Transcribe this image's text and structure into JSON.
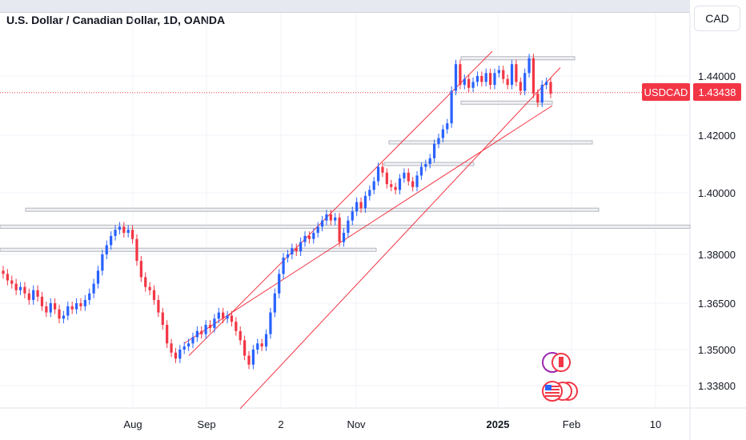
{
  "header": {
    "title": "U.S. Dollar / Canadian Dollar, 1D, OANDA",
    "currency": "CAD"
  },
  "price_label": {
    "symbol": "USDCAD",
    "price": "1.43438"
  },
  "colors": {
    "up": "#2962ff",
    "down": "#f23645",
    "channel": "#f23645",
    "level_line": "#b2b5be"
  },
  "chart_data": {
    "type": "candlestick",
    "title": "U.S. Dollar / Canadian Dollar, 1D, OANDA",
    "symbol": "USDCAD",
    "last_price": 1.43438,
    "y_ticks": [
      1.338,
      1.35,
      1.365,
      1.38,
      1.4,
      1.42,
      1.44
    ],
    "y_tick_labels": [
      "1.33800",
      "1.35000",
      "1.36500",
      "1.38000",
      "1.40000",
      "1.42000",
      "1.44000"
    ],
    "x_ticks": [
      "Aug",
      "Sep",
      "2",
      "Nov",
      "2025",
      "Feb",
      "10"
    ],
    "close_series": [
      1.374,
      1.372,
      1.371,
      1.369,
      1.37,
      1.368,
      1.366,
      1.369,
      1.367,
      1.364,
      1.362,
      1.365,
      1.363,
      1.36,
      1.361,
      1.364,
      1.363,
      1.365,
      1.364,
      1.366,
      1.368,
      1.371,
      1.375,
      1.38,
      1.383,
      1.386,
      1.388,
      1.389,
      1.387,
      1.388,
      1.385,
      1.378,
      1.373,
      1.37,
      1.369,
      1.366,
      1.362,
      1.358,
      1.352,
      1.349,
      1.347,
      1.35,
      1.351,
      1.352,
      1.354,
      1.356,
      1.355,
      1.358,
      1.357,
      1.36,
      1.362,
      1.36,
      1.361,
      1.359,
      1.356,
      1.353,
      1.348,
      1.345,
      1.35,
      1.352,
      1.351,
      1.355,
      1.362,
      1.368,
      1.374,
      1.379,
      1.38,
      1.382,
      1.381,
      1.384,
      1.386,
      1.385,
      1.387,
      1.389,
      1.391,
      1.393,
      1.391,
      1.392,
      1.384,
      1.387,
      1.391,
      1.394,
      1.397,
      1.395,
      1.399,
      1.401,
      1.404,
      1.409,
      1.407,
      1.403,
      1.402,
      1.401,
      1.405,
      1.407,
      1.404,
      1.402,
      1.406,
      1.409,
      1.41,
      1.412,
      1.417,
      1.419,
      1.422,
      1.424,
      1.435,
      1.444,
      1.437,
      1.439,
      1.436,
      1.438,
      1.44,
      1.438,
      1.441,
      1.437,
      1.441,
      1.442,
      1.439,
      1.437,
      1.444,
      1.438,
      1.435,
      1.441,
      1.446,
      1.434,
      1.431,
      1.437,
      1.438,
      1.434
    ],
    "horizontal_levels": [
      1.446,
      1.431,
      1.4175,
      1.41,
      1.3945,
      1.389,
      1.3815
    ],
    "ascending_channel": {
      "upper_start": 1.348,
      "upper_end": 1.447,
      "lower_start": 1.3335,
      "lower_end": 1.445
    }
  }
}
